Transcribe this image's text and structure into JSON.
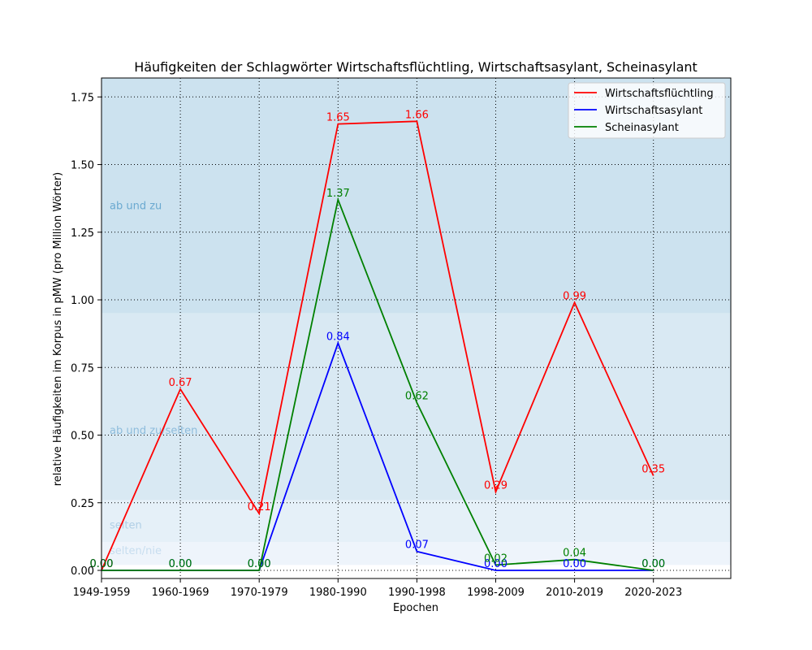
{
  "chart_data": {
    "type": "line",
    "title": "Häufigkeiten der Schlagwörter Wirtschaftsflüchtling, Wirtschaftsasylant, Scheinasylant",
    "xlabel": "Epochen",
    "ylabel": "relative Häufigkeiten im Korpus in pMW (pro Million Wörter)",
    "categories": [
      "1949-1959",
      "1960-1969",
      "1970-1979",
      "1980-1990",
      "1990-1998",
      "1998-2009",
      "2010-2019",
      "2020-2023"
    ],
    "ylim": [
      -0.03,
      1.82
    ],
    "yticks": [
      0.0,
      0.25,
      0.5,
      0.75,
      1.0,
      1.25,
      1.5,
      1.75
    ],
    "ytick_labels": [
      "0.00",
      "0.25",
      "0.50",
      "0.75",
      "1.00",
      "1.25",
      "1.50",
      "1.75"
    ],
    "grid": true,
    "legend_position": "top-right",
    "series": [
      {
        "name": "Wirtschaftsflüchtling",
        "color": "#ff0000",
        "values": [
          0.0,
          0.67,
          0.21,
          1.65,
          1.66,
          0.29,
          0.99,
          0.35
        ],
        "labels": [
          "0.00",
          "0.67",
          "0.21",
          "1.65",
          "1.66",
          "0.29",
          "0.99",
          "0.35"
        ]
      },
      {
        "name": "Wirtschaftsasylant",
        "color": "#0000ff",
        "values": [
          0.0,
          0.0,
          0.0,
          0.84,
          0.07,
          0.0,
          0.0,
          0.0
        ],
        "labels": [
          "0.00",
          "0.00",
          "0.00",
          "0.84",
          "0.07",
          "0.00",
          "0.00",
          "0.00"
        ]
      },
      {
        "name": "Scheinasylant",
        "color": "#008000",
        "values": [
          0.0,
          0.0,
          0.0,
          1.37,
          0.62,
          0.02,
          0.04,
          0.0
        ],
        "labels": [
          "0.00",
          "0.00",
          "0.00",
          "1.37",
          "0.62",
          "0.02",
          "0.04",
          "0.00"
        ]
      }
    ],
    "bands": [
      {
        "label": "ab und zu",
        "from": 0.95,
        "to": 1.82,
        "color": "#cce2ef",
        "text_color": "#6aa9d0"
      },
      {
        "label": "ab und zu/selten",
        "from": 0.26,
        "to": 0.95,
        "color": "#d9e9f3",
        "text_color": "#8dbcdc"
      },
      {
        "label": "selten",
        "from": 0.105,
        "to": 0.26,
        "color": "#e5f0f8",
        "text_color": "#b0cfe6"
      },
      {
        "label": "selten/nie",
        "from": 0.02,
        "to": 0.105,
        "color": "#eef4fb",
        "text_color": "#c7ddef"
      }
    ]
  }
}
